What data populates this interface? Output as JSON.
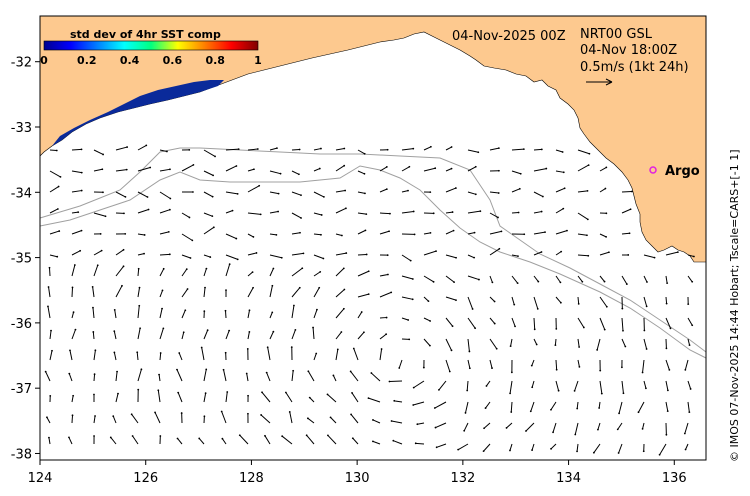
{
  "map": {
    "timestamp": "04-Nov-2025 00Z",
    "product": "NRT00 GSL",
    "product_time": "04-Nov 18:00Z",
    "vector_scale": "0.5m/s (1kt 24h)",
    "credit": "© IMOS 07-Nov-2025 14:44 Hobart; Tscale=CARS+[-1 1]",
    "argo_label": "Argo",
    "colorbar": {
      "title": "std dev of 4hr SST comp",
      "ticks": [
        "0",
        "0.2",
        "0.4",
        "0.6",
        "0.8",
        "1"
      ]
    },
    "x_axis": {
      "ticks": [
        "124",
        "126",
        "128",
        "130",
        "132",
        "134",
        "136"
      ],
      "range": [
        124,
        136.6
      ]
    },
    "y_axis": {
      "ticks": [
        "-32",
        "-33",
        "-34",
        "-35",
        "-36",
        "-37",
        "-38"
      ],
      "range": [
        -38.1,
        -31.3
      ]
    },
    "colors": {
      "land": "#fdc98f",
      "ocean": "#ffffff",
      "bathymetry": "#a0a0a0",
      "argo_marker": "#e020e0",
      "sst_patch": "#0a2a9a"
    }
  }
}
